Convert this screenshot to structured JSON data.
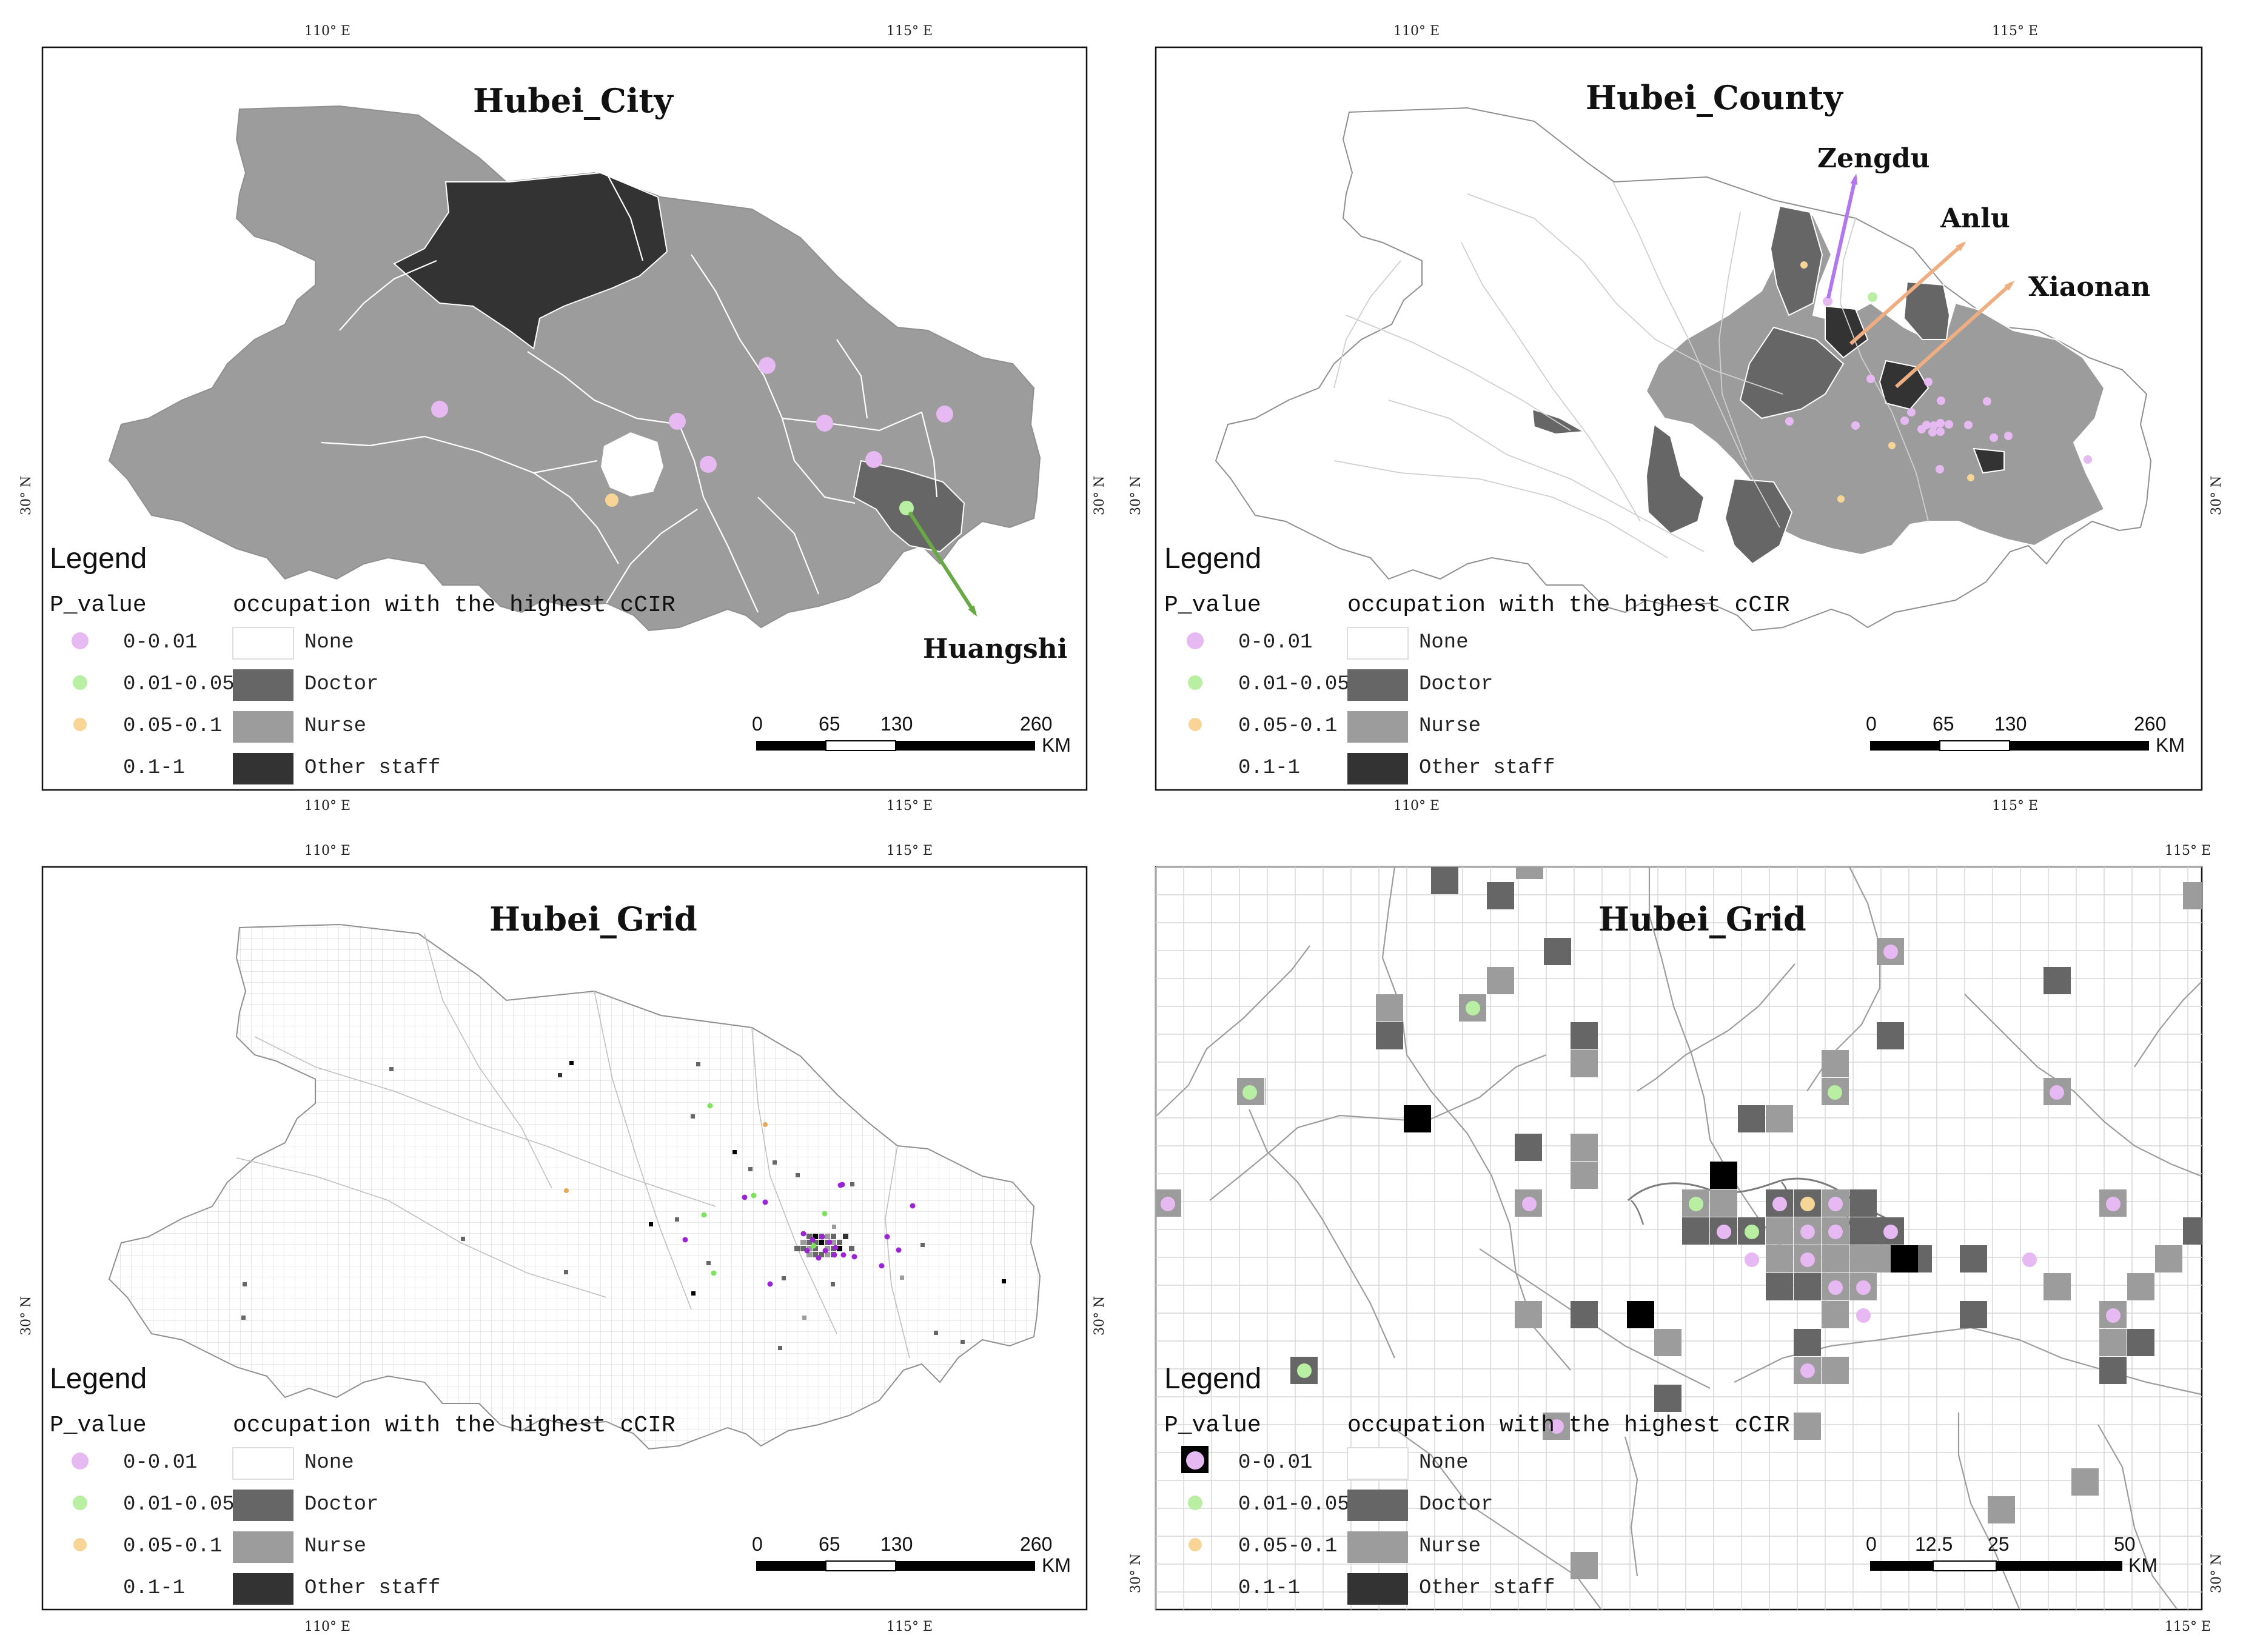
{
  "colors": {
    "none": "#ffffff",
    "doctor": "#666666",
    "nurse": "#9c9c9c",
    "other_staff": "#333333",
    "p_0_001": "#e7b9f2",
    "p_001_005": "#b9efa2",
    "p_005_01": "#f8d597",
    "dark_purple": "#9b24d5",
    "bright_green": "#7ee25f",
    "orange": "#e9a853",
    "purple_arrow": "#b476ee",
    "orange_arrow": "#efae82",
    "green_arrow": "#68a946",
    "grid_line": "#d7d7d7"
  },
  "legend": {
    "title": "Legend",
    "p_value_title": "P_value",
    "occupation_title": "occupation with the highest cCIR",
    "p_items": [
      "0-0.01",
      "0.01-0.05",
      "0.05-0.1",
      "0.1-1"
    ],
    "occupation_items": [
      "None",
      "Doctor",
      "Nurse",
      "Other staff"
    ]
  },
  "panels": [
    {
      "title": "Hubei_City",
      "coords": {
        "top_left": "110° E",
        "top_right": "115° E",
        "bottom_left": "110° E",
        "bottom_right": "115° E",
        "left_lat": "30° N",
        "right_lat": "30° N"
      },
      "scale": {
        "ticks": [
          "0",
          "65",
          "130",
          "260"
        ],
        "unit": "KM"
      },
      "annotations": [
        "Huangshi"
      ]
    },
    {
      "title": "Hubei_County",
      "coords": {
        "top_left": "110° E",
        "top_right": "115° E",
        "bottom_left": "110° E",
        "bottom_right": "115° E",
        "left_lat": "30° N",
        "right_lat": "30° N"
      },
      "scale": {
        "ticks": [
          "0",
          "65",
          "130",
          "260"
        ],
        "unit": "KM"
      },
      "annotations": [
        "Zengdu",
        "Anlu",
        "Xiaonan"
      ]
    },
    {
      "title": "Hubei_Grid",
      "coords": {
        "top_left": "110° E",
        "top_right": "115° E",
        "bottom_left": "110° E",
        "bottom_right": "115° E",
        "left_lat": "30° N",
        "right_lat": "30° N"
      },
      "scale": {
        "ticks": [
          "0",
          "65",
          "130",
          "260"
        ],
        "unit": "KM"
      },
      "annotations": []
    },
    {
      "title": "Hubei_Grid",
      "coords": {
        "top_right": "115° E",
        "bottom_right": "115° E",
        "left_lat": "30° N",
        "right_lat": "30° N"
      },
      "scale": {
        "ticks": [
          "0",
          "12.5",
          "25",
          "50"
        ],
        "unit": "KM"
      },
      "annotations": []
    }
  ]
}
